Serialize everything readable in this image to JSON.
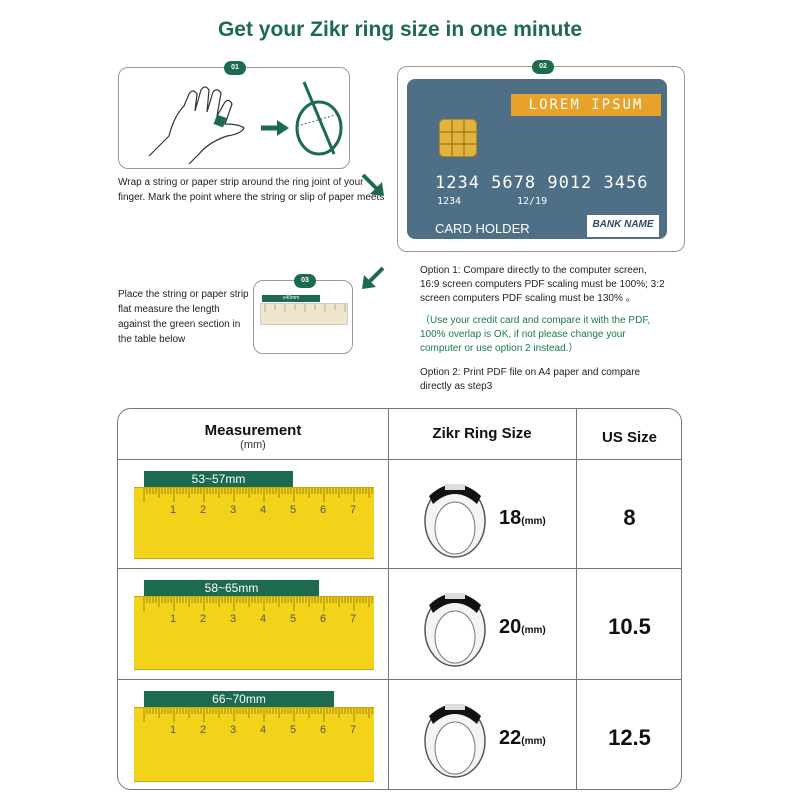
{
  "title": "Get your Zikr ring size in one minute",
  "step1": {
    "badge": "01",
    "text": "Wrap a string or paper strip around the ring joint of your finger. Mark the point where the string or slip of paper meets"
  },
  "step2": {
    "badge": "02",
    "card": {
      "banner": "LOREM IPSUM",
      "number": "1234 5678 9012 3456",
      "small_number": "1234",
      "expiry": "12/19",
      "holder": "CARD HOLDER",
      "bank": "BANK NAME"
    }
  },
  "step3": {
    "badge": "03",
    "strip_label": "≤40mm",
    "text": "Place the string or paper strip flat measure the length against the green section in the table below"
  },
  "options": {
    "option1": "Option 1: Compare directly to the computer screen, 16:9 screen computers PDF scaling must be 100%; 3:2 screen computers PDF scaling must be 130% 。",
    "note": "（Use your credit card and compare it with the PDF, 100% overlap is OK, if not please change your computer or use option 2 instead.）",
    "option2": "Option 2: Print PDF file on A4 paper and compare directly as step3"
  },
  "table": {
    "headers": {
      "measurement": "Measurement",
      "measurement_unit": "(mm)",
      "ring_size": "Zikr Ring Size",
      "us_size": "US Size"
    },
    "ruler_numbers": [
      "1",
      "2",
      "3",
      "4",
      "5",
      "6",
      "7"
    ],
    "rows": [
      {
        "range": "53~57mm",
        "range_fraction": 0.62,
        "ring": "18",
        "unit": "(mm)",
        "us": "8"
      },
      {
        "range": "58~65mm",
        "range_fraction": 0.73,
        "ring": "20",
        "unit": "(mm)",
        "us": "10.5"
      },
      {
        "range": "66~70mm",
        "range_fraction": 0.79,
        "ring": "22",
        "unit": "(mm)",
        "us": "12.5"
      }
    ]
  },
  "colors": {
    "brand_green": "#1d6b4f",
    "ruler_yellow": "#f3d21a",
    "card_blue": "#4e6f86",
    "card_orange": "#e7a22a"
  }
}
